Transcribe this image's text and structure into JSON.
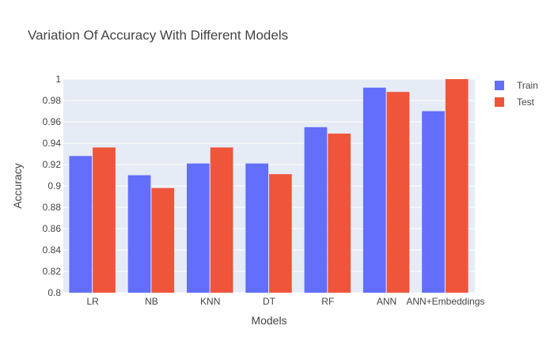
{
  "chart_data": {
    "type": "bar",
    "title": "Variation Of Accuracy With Different Models",
    "xlabel": "Models",
    "ylabel": "Accuracy",
    "categories": [
      "LR",
      "NB",
      "KNN",
      "DT",
      "RF",
      "ANN",
      "ANN+Embeddings"
    ],
    "series": [
      {
        "name": "Train",
        "color": "#636efa",
        "values": [
          0.928,
          0.91,
          0.921,
          0.921,
          0.955,
          0.992,
          0.97
        ]
      },
      {
        "name": "Test",
        "color": "#ef553b",
        "values": [
          0.936,
          0.898,
          0.936,
          0.911,
          0.949,
          0.988,
          1.0
        ]
      }
    ],
    "ylim": [
      0.8,
      1.0
    ],
    "yticks": [
      "0.8",
      "0.82",
      "0.84",
      "0.86",
      "0.88",
      "0.9",
      "0.92",
      "0.94",
      "0.96",
      "0.98",
      "1"
    ],
    "grid": true,
    "legend_position": "top-right",
    "plot_background": "#e5ecf6"
  }
}
